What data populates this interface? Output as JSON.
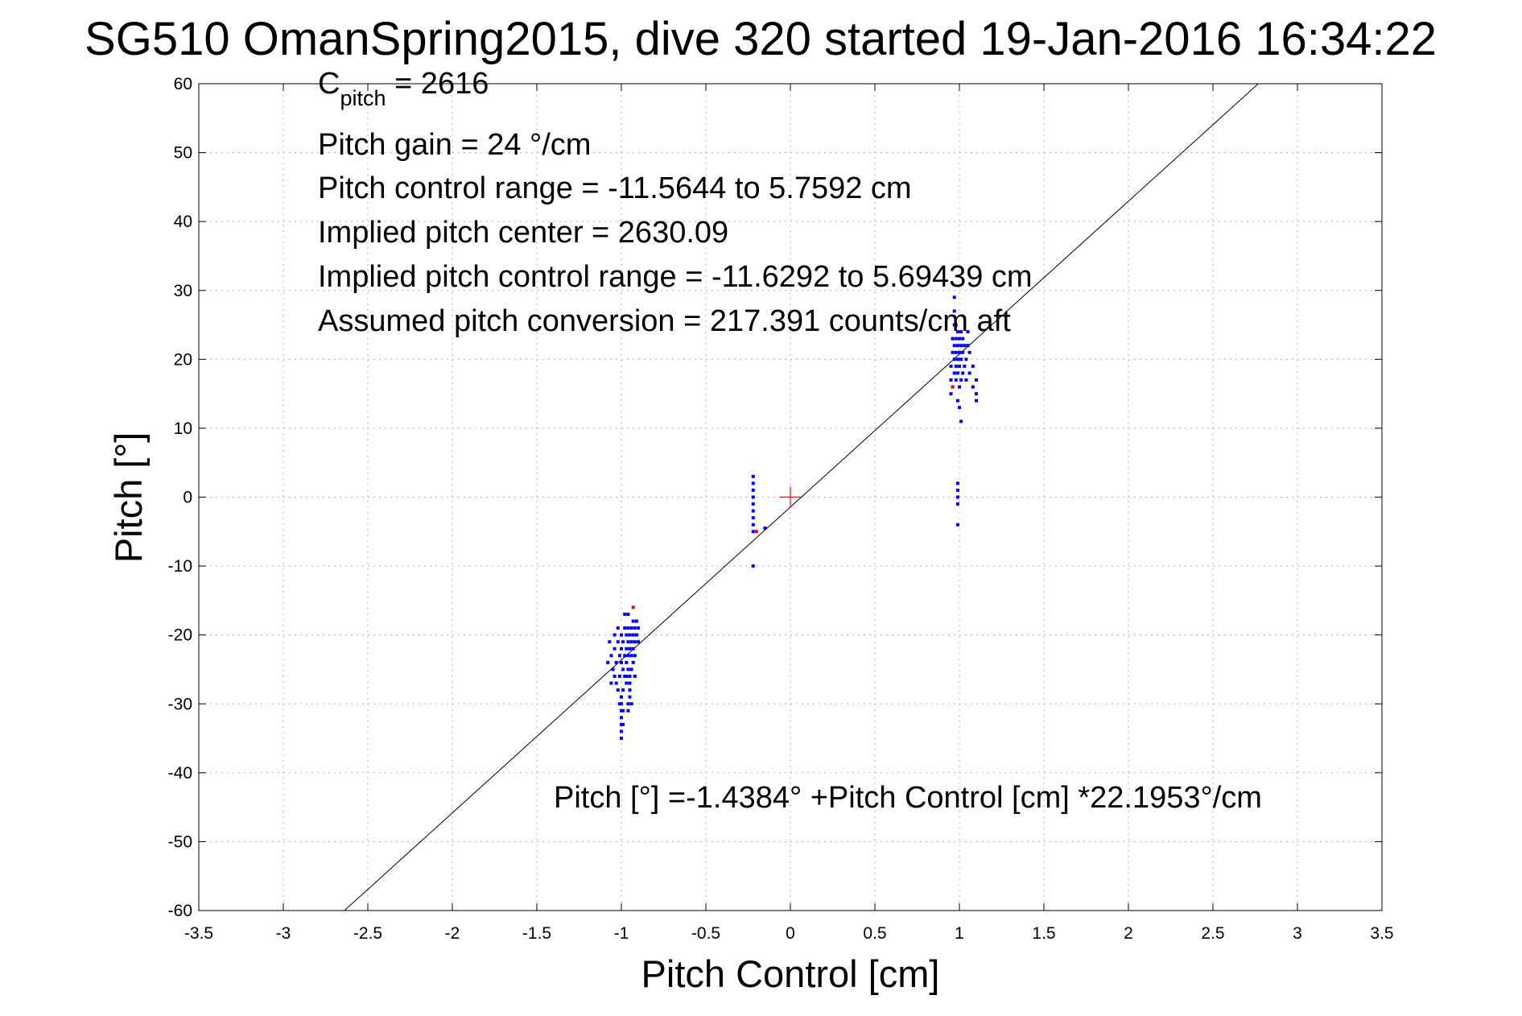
{
  "chart_data": {
    "type": "scatter",
    "title": "SG510 OmanSpring2015, dive 320 started 19-Jan-2016 16:34:22",
    "xlabel": "Pitch Control [cm]",
    "ylabel": "Pitch [°]",
    "xlim": [
      -3.5,
      3.5
    ],
    "ylim": [
      -60,
      60
    ],
    "grid": true,
    "x_ticks": [
      -3.5,
      -3,
      -2.5,
      -2,
      -1.5,
      -1,
      -0.5,
      0,
      0.5,
      1,
      1.5,
      2,
      2.5,
      3,
      3.5
    ],
    "x_tick_labels": [
      "-3.5",
      "-3",
      "-2.5",
      "-2",
      "-1.5",
      "-1",
      "-0.5",
      "0",
      "0.5",
      "1",
      "1.5",
      "2",
      "2.5",
      "3",
      "3.5"
    ],
    "y_ticks": [
      -60,
      -50,
      -40,
      -30,
      -20,
      -10,
      0,
      10,
      20,
      30,
      40,
      50,
      60
    ],
    "y_tick_labels": [
      "-60",
      "-50",
      "-40",
      "-30",
      "-20",
      "-10",
      "0",
      "10",
      "20",
      "30",
      "40",
      "50",
      "60"
    ],
    "colors": {
      "points": "#0000ff",
      "highlight": "#ff0000",
      "fit_line": "#000000",
      "center_marker": "#ff0000",
      "grid": "#b0b0b0"
    },
    "annotations": {
      "cpitch_main": "C",
      "cpitch_sub": "pitch",
      "cpitch_value": " = 2616",
      "lines": [
        "Pitch gain = 24 °/cm",
        "Pitch control range = -11.5644 to 5.7592 cm",
        "Implied pitch center = 2630.09",
        "Implied pitch control range = -11.6292 to 5.69439 cm",
        "Assumed pitch conversion = 217.391 counts/cm aft"
      ],
      "fit_equation": "Pitch [°] =-1.4384° +Pitch Control [cm] *22.1953°/cm"
    },
    "fit_line": {
      "intercept": -1.4384,
      "slope": 22.1953
    },
    "center_marker": {
      "x": 0,
      "y": 0
    },
    "series": [
      {
        "marker": "dot",
        "color": "#0000ff",
        "points": [
          [
            -1.07,
            -21
          ],
          [
            -1.06,
            -23
          ],
          [
            -1.05,
            -25
          ],
          [
            -1.04,
            -20
          ],
          [
            -1.04,
            -22
          ],
          [
            -1.03,
            -24
          ],
          [
            -1.03,
            -27
          ],
          [
            -1.02,
            -21
          ],
          [
            -1.02,
            -19
          ],
          [
            -1.01,
            -23
          ],
          [
            -1.01,
            -26
          ],
          [
            -1.0,
            -22
          ],
          [
            -1.0,
            -24
          ],
          [
            -1.0,
            -20
          ],
          [
            -0.99,
            -28
          ],
          [
            -0.99,
            -25
          ],
          [
            -0.99,
            -21
          ],
          [
            -0.98,
            -23
          ],
          [
            -0.98,
            -19
          ],
          [
            -0.98,
            -26
          ],
          [
            -0.97,
            -22
          ],
          [
            -0.97,
            -24
          ],
          [
            -0.97,
            -20
          ],
          [
            -0.97,
            -27
          ],
          [
            -0.96,
            -21
          ],
          [
            -0.96,
            -23
          ],
          [
            -0.96,
            -25
          ],
          [
            -0.96,
            -19
          ],
          [
            -0.95,
            -22
          ],
          [
            -0.95,
            -20
          ],
          [
            -0.95,
            -26
          ],
          [
            -0.95,
            -28
          ],
          [
            -0.94,
            -21
          ],
          [
            -0.94,
            -23
          ],
          [
            -0.94,
            -19
          ],
          [
            -0.94,
            -25
          ],
          [
            -0.93,
            -20
          ],
          [
            -0.93,
            -22
          ],
          [
            -0.93,
            -18
          ],
          [
            -0.92,
            -21
          ],
          [
            -0.92,
            -19
          ],
          [
            -0.92,
            -23
          ],
          [
            -0.91,
            -20
          ],
          [
            -0.91,
            -18
          ],
          [
            -0.9,
            -19
          ],
          [
            -0.9,
            -21
          ],
          [
            -0.96,
            -30
          ],
          [
            -0.96,
            -31
          ],
          [
            -0.95,
            -29
          ],
          [
            -0.94,
            -30
          ],
          [
            -1.0,
            -29
          ],
          [
            -1.0,
            -30
          ],
          [
            -1.0,
            -31
          ],
          [
            -1.0,
            -32
          ],
          [
            -1.0,
            -33
          ],
          [
            -1.0,
            -34
          ],
          [
            -1.0,
            -35
          ],
          [
            -0.99,
            -33
          ],
          [
            -0.99,
            -31
          ],
          [
            -1.01,
            -30
          ],
          [
            -1.08,
            -24
          ],
          [
            -1.06,
            -27
          ],
          [
            -1.04,
            -26
          ],
          [
            -0.98,
            -17
          ],
          [
            -0.96,
            -17
          ],
          [
            -0.93,
            -24
          ],
          [
            -0.92,
            -26
          ],
          [
            -0.97,
            -26
          ],
          [
            -0.95,
            -27
          ],
          [
            -1.02,
            -28
          ],
          [
            -0.22,
            3
          ],
          [
            -0.22,
            2
          ],
          [
            -0.22,
            1
          ],
          [
            -0.22,
            0
          ],
          [
            -0.22,
            -1
          ],
          [
            -0.22,
            -2
          ],
          [
            -0.22,
            -3
          ],
          [
            -0.22,
            -4
          ],
          [
            -0.22,
            -5
          ],
          [
            -0.22,
            -10
          ],
          [
            -0.15,
            -4.5
          ],
          [
            0.95,
            15
          ],
          [
            0.95,
            17
          ],
          [
            0.95,
            19
          ],
          [
            0.96,
            21
          ],
          [
            0.96,
            23
          ],
          [
            0.96,
            16
          ],
          [
            0.97,
            18
          ],
          [
            0.97,
            20
          ],
          [
            0.97,
            22
          ],
          [
            0.97,
            25
          ],
          [
            0.97,
            27
          ],
          [
            0.97,
            29
          ],
          [
            0.98,
            17
          ],
          [
            0.98,
            19
          ],
          [
            0.98,
            21
          ],
          [
            0.98,
            23
          ],
          [
            0.98,
            25
          ],
          [
            0.99,
            14
          ],
          [
            0.99,
            18
          ],
          [
            0.99,
            20
          ],
          [
            0.99,
            22
          ],
          [
            0.99,
            24
          ],
          [
            1.0,
            16
          ],
          [
            1.0,
            19
          ],
          [
            1.0,
            21
          ],
          [
            1.0,
            23
          ],
          [
            1.0,
            13
          ],
          [
            1.01,
            17
          ],
          [
            1.01,
            20
          ],
          [
            1.01,
            22
          ],
          [
            1.01,
            24
          ],
          [
            1.01,
            11
          ],
          [
            1.02,
            18
          ],
          [
            1.02,
            21
          ],
          [
            1.02,
            23
          ],
          [
            1.03,
            19
          ],
          [
            1.03,
            22
          ],
          [
            1.04,
            17
          ],
          [
            1.04,
            20
          ],
          [
            1.05,
            22
          ],
          [
            1.05,
            24
          ],
          [
            1.06,
            18
          ],
          [
            1.06,
            21
          ],
          [
            1.08,
            16
          ],
          [
            1.08,
            19
          ],
          [
            1.1,
            15
          ],
          [
            1.1,
            17
          ],
          [
            1.1,
            14
          ],
          [
            0.99,
            2
          ],
          [
            0.99,
            1
          ],
          [
            0.99,
            0
          ],
          [
            0.99,
            -1
          ],
          [
            0.99,
            -4
          ]
        ]
      },
      {
        "marker": "dot",
        "color": "#ff0000",
        "points": [
          [
            -0.93,
            -16
          ],
          [
            -0.2,
            -5
          ],
          [
            0.96,
            16
          ]
        ]
      }
    ]
  }
}
